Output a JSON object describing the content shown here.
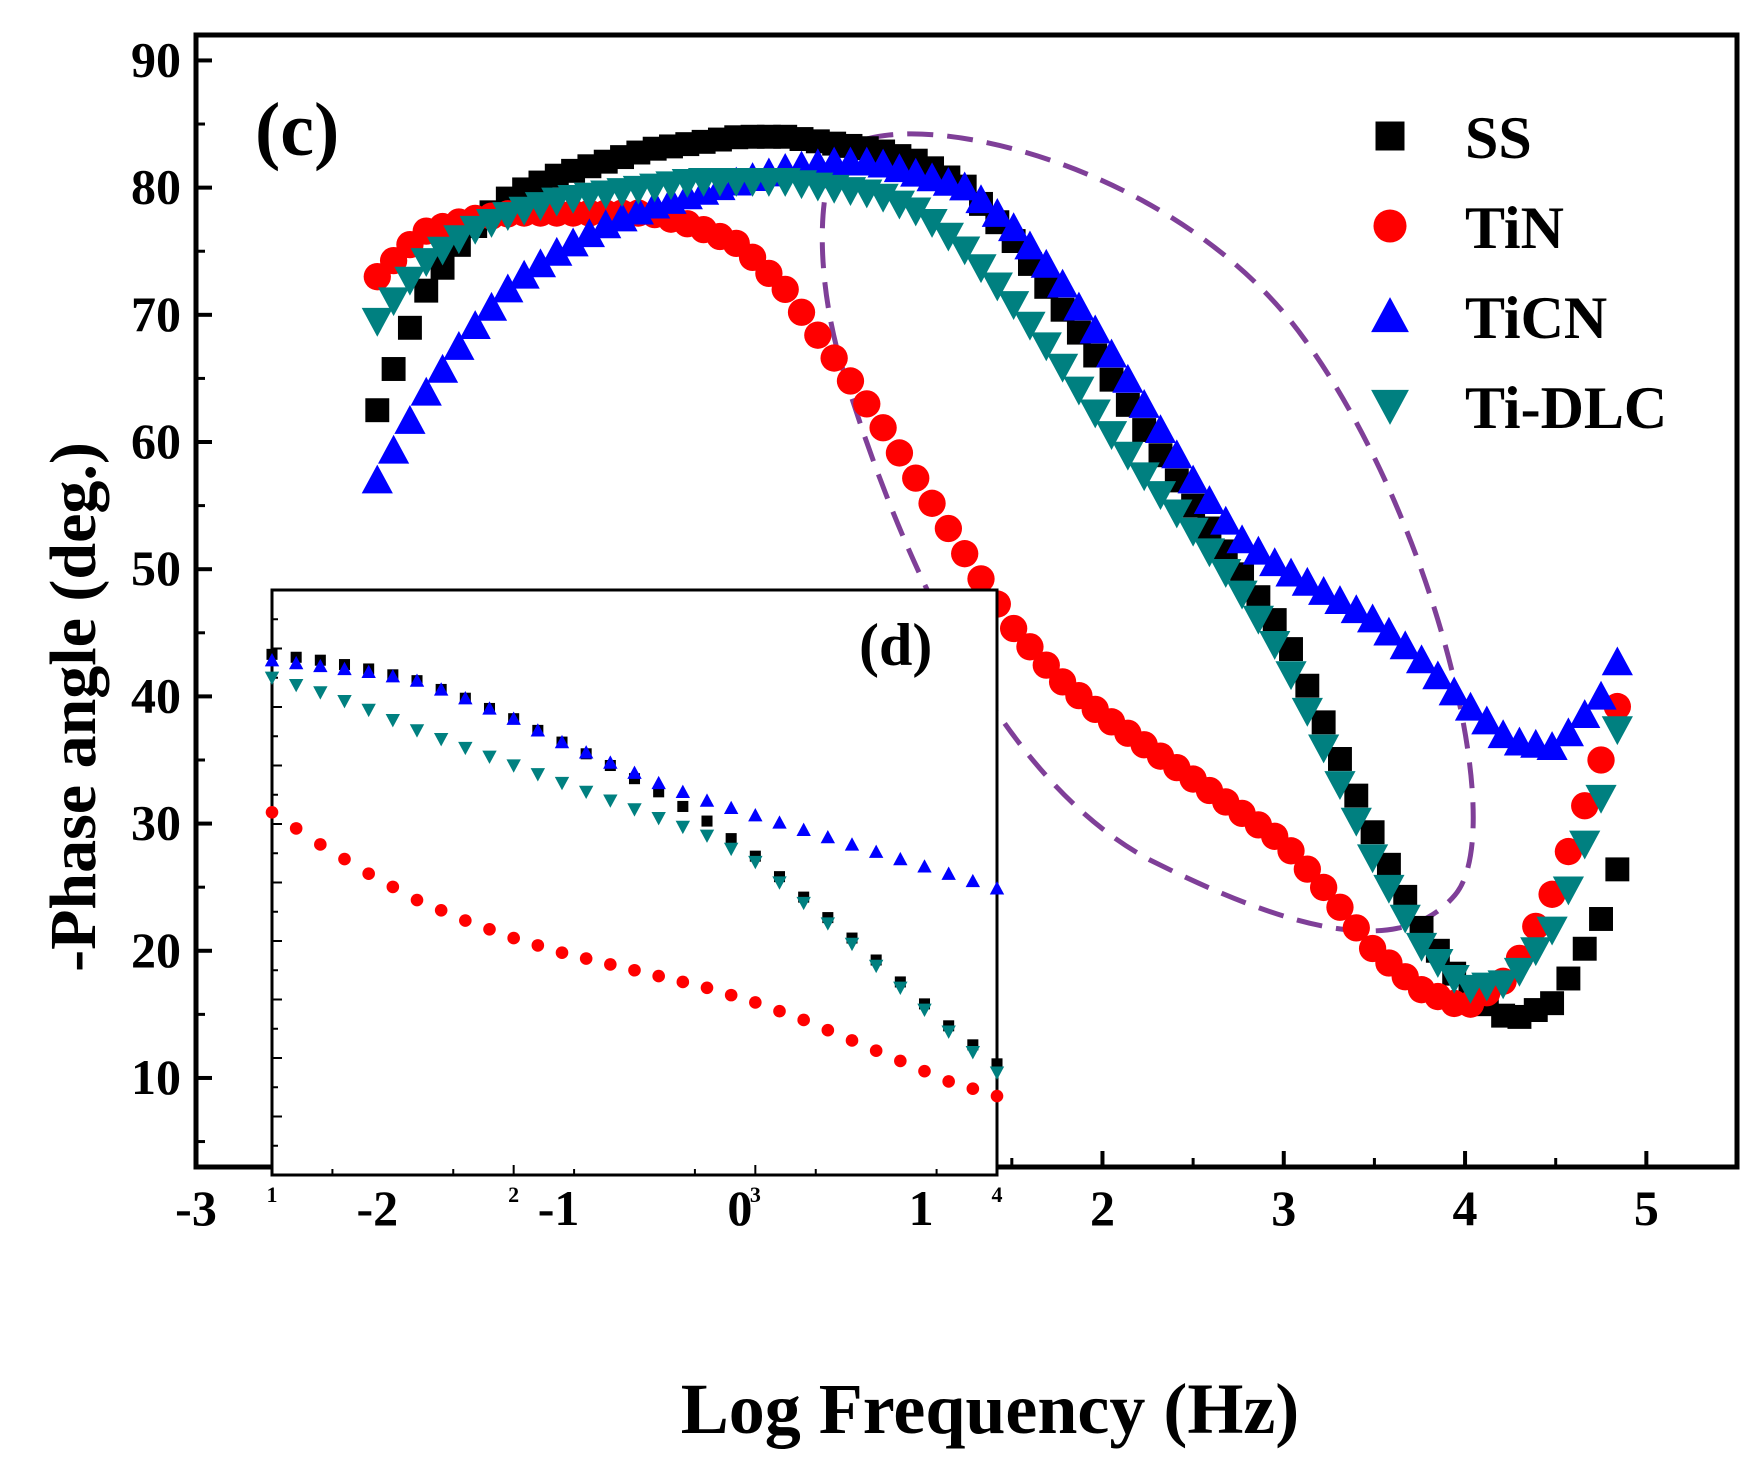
{
  "chart_data": [
    {
      "name": "main",
      "type": "scatter",
      "panel_label": "(c)",
      "xlabel": "Log Frequency (Hz)",
      "ylabel": "-Phase angle (deg.)",
      "xlim": [
        -3,
        5.5
      ],
      "ylim": [
        3,
        92
      ],
      "xticks": [
        -3,
        -2,
        -1,
        0,
        1,
        2,
        3,
        4,
        5
      ],
      "xtick_labels": [
        "-3",
        "-2",
        "-1",
        "0",
        "1",
        "2",
        "3",
        "4",
        "5"
      ],
      "yticks": [
        10,
        20,
        30,
        40,
        50,
        60,
        70,
        80,
        90
      ],
      "ytick_labels": [
        "10",
        "20",
        "30",
        "40",
        "50",
        "60",
        "70",
        "80",
        "90"
      ],
      "legend_position": "top-right",
      "series": [
        {
          "name": "SS",
          "marker": "square",
          "color": "#000000",
          "x": [
            -2.0,
            -1.75,
            -1.5,
            -1.25,
            -1.0,
            -0.75,
            -0.5,
            -0.25,
            0.0,
            0.25,
            0.5,
            0.75,
            1.0,
            1.25,
            1.5,
            1.75,
            2.0,
            2.25,
            2.5,
            2.75,
            3.0,
            3.25,
            3.5,
            3.75,
            4.0,
            4.25,
            4.5,
            4.75,
            4.9
          ],
          "y": [
            62.5,
            71.5,
            76.5,
            79.5,
            81.0,
            82.0,
            83.0,
            83.5,
            84.0,
            84.0,
            83.5,
            83.0,
            82.0,
            80.0,
            76.0,
            71.0,
            66.0,
            60.5,
            55.0,
            50.0,
            45.0,
            37.0,
            29.0,
            22.0,
            17.0,
            14.5,
            16.0,
            22.5,
            29.0
          ]
        },
        {
          "name": "TiN",
          "marker": "circle",
          "color": "#ff0000",
          "x": [
            -2.0,
            -1.75,
            -1.5,
            -1.25,
            -1.0,
            -0.75,
            -0.5,
            -0.25,
            0.0,
            0.25,
            0.5,
            0.75,
            1.0,
            1.25,
            1.5,
            1.75,
            2.0,
            2.25,
            2.5,
            2.75,
            3.0,
            3.25,
            3.5,
            3.75,
            4.0,
            4.25,
            4.5,
            4.75,
            4.9
          ],
          "y": [
            73.0,
            76.5,
            77.5,
            78.0,
            78.0,
            78.0,
            78.0,
            77.0,
            75.5,
            72.0,
            67.0,
            62.0,
            56.5,
            51.0,
            45.5,
            41.5,
            38.5,
            36.0,
            33.5,
            31.0,
            28.5,
            24.5,
            20.0,
            17.0,
            15.5,
            18.0,
            25.0,
            35.0,
            42.0
          ]
        },
        {
          "name": "TiCN",
          "marker": "triangle-up",
          "color": "#0000ff",
          "x": [
            -2.0,
            -1.75,
            -1.5,
            -1.25,
            -1.0,
            -0.75,
            -0.5,
            -0.25,
            0.0,
            0.25,
            0.5,
            0.75,
            1.0,
            1.25,
            1.5,
            1.75,
            2.0,
            2.25,
            2.5,
            2.75,
            3.0,
            3.25,
            3.5,
            3.75,
            4.0,
            4.25,
            4.5,
            4.75,
            4.9
          ],
          "y": [
            57.0,
            63.5,
            68.5,
            72.5,
            75.0,
            77.0,
            78.5,
            79.5,
            80.5,
            81.5,
            82.0,
            82.0,
            81.0,
            80.0,
            77.0,
            73.0,
            68.0,
            62.5,
            57.0,
            52.5,
            50.0,
            48.0,
            46.0,
            43.0,
            39.5,
            36.5,
            36.0,
            40.0,
            44.5
          ]
        },
        {
          "name": "Ti-DLC",
          "marker": "triangle-down",
          "color": "#008080",
          "x": [
            -2.0,
            -1.75,
            -1.5,
            -1.25,
            -1.0,
            -0.75,
            -0.5,
            -0.25,
            0.0,
            0.25,
            0.5,
            0.75,
            1.0,
            1.25,
            1.5,
            1.75,
            2.0,
            2.25,
            2.5,
            2.75,
            3.0,
            3.25,
            3.5,
            3.75,
            4.0,
            4.25,
            4.5,
            4.75,
            4.9
          ],
          "y": [
            69.5,
            74.0,
            76.5,
            78.0,
            79.0,
            79.5,
            80.0,
            80.5,
            80.5,
            80.5,
            80.0,
            79.5,
            78.0,
            75.0,
            71.0,
            66.5,
            61.5,
            57.0,
            53.0,
            48.5,
            43.0,
            35.0,
            27.0,
            20.5,
            17.0,
            17.5,
            22.0,
            32.0,
            41.0
          ]
        }
      ],
      "annotation": {
        "type": "dashed-ellipse",
        "color": "#7f3f98"
      }
    },
    {
      "name": "inset",
      "type": "scatter",
      "panel_label": "(d)",
      "xlim": [
        1,
        4
      ],
      "ylim": [
        0,
        100
      ],
      "xticks": [
        1,
        2,
        3,
        4
      ],
      "xtick_labels": [
        "1",
        "2",
        "3",
        "4"
      ],
      "series": [
        {
          "name": "SS",
          "marker": "square",
          "color": "#000000",
          "x": [
            1.0,
            1.2,
            1.4,
            1.6,
            1.8,
            2.0,
            2.2,
            2.4,
            2.6,
            2.8,
            3.0,
            3.2,
            3.4,
            3.6,
            3.8,
            4.0
          ],
          "y": [
            89.0,
            88.0,
            86.5,
            84.5,
            81.5,
            78.0,
            74.0,
            70.0,
            65.5,
            60.5,
            54.5,
            47.5,
            40.5,
            33.0,
            25.5,
            19.0
          ]
        },
        {
          "name": "TiN",
          "marker": "circle",
          "color": "#ff0000",
          "x": [
            1.0,
            1.2,
            1.4,
            1.6,
            1.8,
            2.0,
            2.2,
            2.4,
            2.6,
            2.8,
            3.0,
            3.2,
            3.4,
            3.6,
            3.8,
            4.0
          ],
          "y": [
            62.0,
            56.5,
            51.5,
            47.0,
            43.5,
            40.5,
            38.0,
            36.0,
            34.0,
            32.0,
            29.5,
            26.5,
            23.0,
            19.5,
            16.0,
            13.5
          ]
        },
        {
          "name": "TiCN",
          "marker": "triangle-up",
          "color": "#0000ff",
          "x": [
            1.0,
            1.2,
            1.4,
            1.6,
            1.8,
            2.0,
            2.2,
            2.4,
            2.6,
            2.8,
            3.0,
            3.2,
            3.4,
            3.6,
            3.8,
            4.0
          ],
          "y": [
            88.0,
            87.0,
            86.0,
            84.5,
            81.5,
            78.0,
            74.0,
            70.5,
            67.0,
            64.0,
            61.5,
            59.0,
            56.5,
            54.0,
            51.5,
            49.0
          ]
        },
        {
          "name": "Ti-DLC",
          "marker": "triangle-down",
          "color": "#008080",
          "x": [
            1.0,
            1.2,
            1.4,
            1.6,
            1.8,
            2.0,
            2.2,
            2.4,
            2.6,
            2.8,
            3.0,
            3.2,
            3.4,
            3.6,
            3.8,
            4.0
          ],
          "y": [
            85.0,
            82.5,
            79.5,
            76.0,
            73.0,
            70.0,
            67.0,
            64.0,
            61.0,
            58.0,
            53.5,
            46.5,
            39.5,
            32.0,
            24.5,
            17.5
          ]
        }
      ]
    }
  ]
}
